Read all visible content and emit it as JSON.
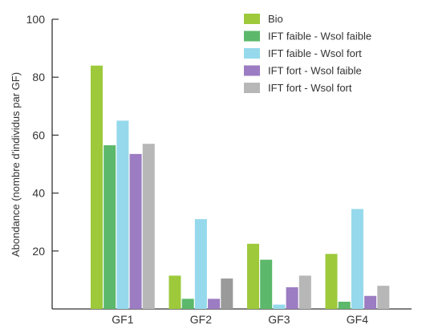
{
  "chart_data": {
    "type": "bar",
    "title": "",
    "xlabel": "",
    "ylabel": "Abondance (nombre d'individus par GF)",
    "categories": [
      "GF1",
      "GF2",
      "GF3",
      "GF4"
    ],
    "yticks": [
      "20",
      "40",
      "60",
      "80",
      "100"
    ],
    "ylim": [
      0,
      100
    ],
    "grid": false,
    "legend_position": "top-right",
    "series": [
      {
        "name": "Bio",
        "color": "#9dc93b",
        "values": [
          84,
          11.5,
          22.5,
          19
        ]
      },
      {
        "name": "IFT faible - Wsol faible",
        "color": "#5cb86a",
        "values": [
          56.5,
          3.5,
          17,
          2.5
        ]
      },
      {
        "name": "IFT faible - Wsol fort",
        "color": "#96d9ec",
        "values": [
          65,
          31,
          1.5,
          34.5
        ]
      },
      {
        "name": "IFT fort - Wsol faible",
        "color": "#9c7cc2",
        "values": [
          53.5,
          3.5,
          7.5,
          4.5
        ]
      },
      {
        "name": "IFT fort - Wsol fort",
        "color": "#b7b7b7",
        "values": [
          57,
          10.5,
          11.5,
          8
        ]
      }
    ],
    "special_colors": {
      "GF2-IFT fort - Wsol fort": "#9a9a9a"
    }
  }
}
